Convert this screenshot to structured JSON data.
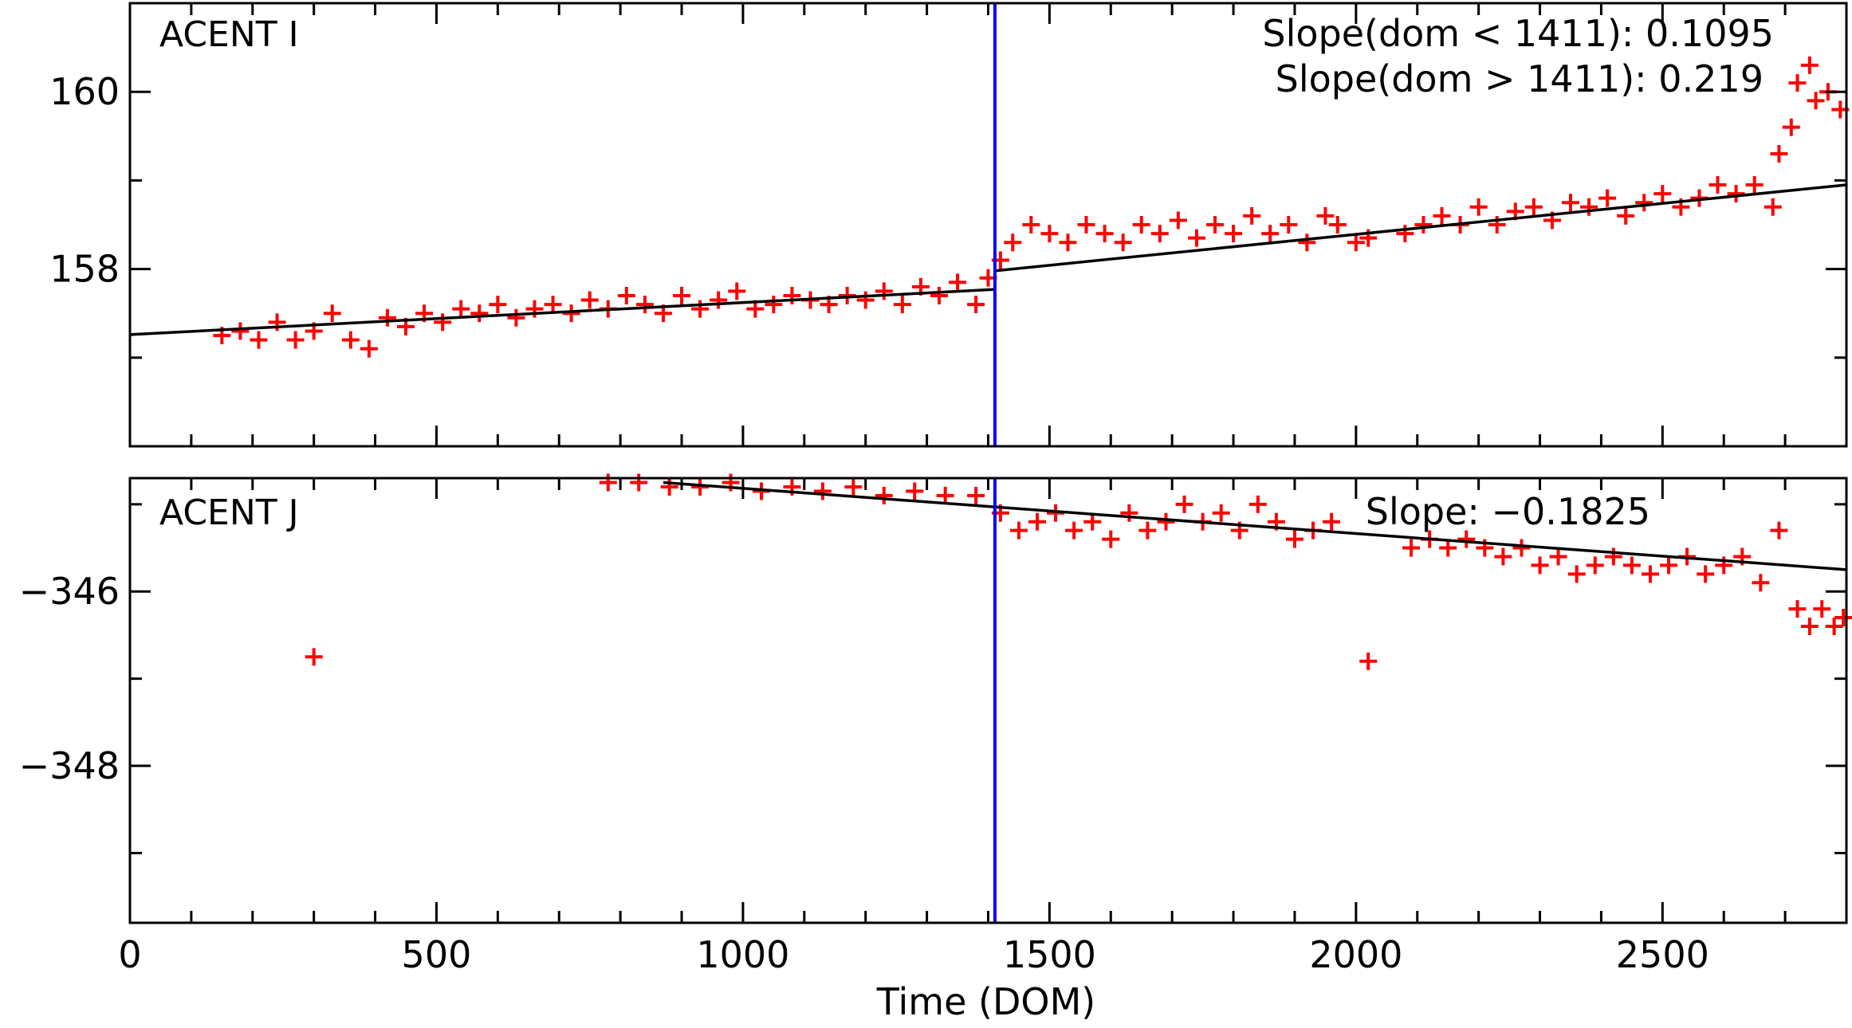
{
  "chart_data": [
    {
      "type": "scatter",
      "panel_label": "ACENT I",
      "xlim": [
        0,
        2800
      ],
      "ylim": [
        156.0,
        161.0
      ],
      "yticks": [
        158,
        160
      ],
      "ytick_labels": [
        "158",
        "160"
      ],
      "annotations": [
        "Slope(dom < 1411): 0.1095",
        "Slope(dom > 1411): 0.219"
      ],
      "breakpoint_dom": 1411,
      "fit_lines": [
        {
          "x": [
            0,
            1411
          ],
          "y": [
            157.26,
            157.77
          ]
        },
        {
          "x": [
            1411,
            2800
          ],
          "y": [
            157.98,
            158.95
          ]
        }
      ],
      "points": [
        [
          150,
          157.25
        ],
        [
          180,
          157.3
        ],
        [
          210,
          157.2
        ],
        [
          240,
          157.4
        ],
        [
          270,
          157.2
        ],
        [
          300,
          157.3
        ],
        [
          330,
          157.5
        ],
        [
          360,
          157.2
        ],
        [
          390,
          157.1
        ],
        [
          420,
          157.45
        ],
        [
          450,
          157.35
        ],
        [
          480,
          157.5
        ],
        [
          510,
          157.4
        ],
        [
          540,
          157.55
        ],
        [
          570,
          157.5
        ],
        [
          600,
          157.6
        ],
        [
          630,
          157.45
        ],
        [
          660,
          157.55
        ],
        [
          690,
          157.6
        ],
        [
          720,
          157.5
        ],
        [
          750,
          157.65
        ],
        [
          780,
          157.55
        ],
        [
          810,
          157.7
        ],
        [
          840,
          157.6
        ],
        [
          870,
          157.5
        ],
        [
          900,
          157.7
        ],
        [
          930,
          157.55
        ],
        [
          960,
          157.65
        ],
        [
          990,
          157.75
        ],
        [
          1020,
          157.55
        ],
        [
          1050,
          157.6
        ],
        [
          1080,
          157.7
        ],
        [
          1110,
          157.65
        ],
        [
          1140,
          157.6
        ],
        [
          1170,
          157.7
        ],
        [
          1200,
          157.65
        ],
        [
          1230,
          157.75
        ],
        [
          1260,
          157.6
        ],
        [
          1290,
          157.8
        ],
        [
          1320,
          157.7
        ],
        [
          1350,
          157.85
        ],
        [
          1380,
          157.6
        ],
        [
          1400,
          157.9
        ],
        [
          1420,
          158.1
        ],
        [
          1440,
          158.3
        ],
        [
          1470,
          158.5
        ],
        [
          1500,
          158.4
        ],
        [
          1530,
          158.3
        ],
        [
          1560,
          158.5
        ],
        [
          1590,
          158.4
        ],
        [
          1620,
          158.3
        ],
        [
          1650,
          158.5
        ],
        [
          1680,
          158.4
        ],
        [
          1710,
          158.55
        ],
        [
          1740,
          158.35
        ],
        [
          1770,
          158.5
        ],
        [
          1800,
          158.4
        ],
        [
          1830,
          158.6
        ],
        [
          1860,
          158.4
        ],
        [
          1890,
          158.5
        ],
        [
          1920,
          158.3
        ],
        [
          1950,
          158.6
        ],
        [
          1970,
          158.5
        ],
        [
          2000,
          158.3
        ],
        [
          2020,
          158.35
        ],
        [
          2080,
          158.4
        ],
        [
          2110,
          158.5
        ],
        [
          2140,
          158.6
        ],
        [
          2170,
          158.5
        ],
        [
          2200,
          158.7
        ],
        [
          2230,
          158.5
        ],
        [
          2260,
          158.65
        ],
        [
          2290,
          158.7
        ],
        [
          2320,
          158.55
        ],
        [
          2350,
          158.75
        ],
        [
          2380,
          158.7
        ],
        [
          2410,
          158.8
        ],
        [
          2440,
          158.6
        ],
        [
          2470,
          158.75
        ],
        [
          2500,
          158.85
        ],
        [
          2530,
          158.7
        ],
        [
          2560,
          158.8
        ],
        [
          2590,
          158.95
        ],
        [
          2620,
          158.85
        ],
        [
          2650,
          158.95
        ],
        [
          2680,
          158.7
        ],
        [
          2690,
          159.3
        ],
        [
          2710,
          159.6
        ],
        [
          2720,
          160.1
        ],
        [
          2740,
          160.3
        ],
        [
          2750,
          159.9
        ],
        [
          2770,
          160.0
        ],
        [
          2790,
          159.8
        ]
      ]
    },
    {
      "type": "scatter",
      "panel_label": "ACENT J",
      "xlim": [
        0,
        2800
      ],
      "ylim": [
        -349.8,
        -344.7
      ],
      "yticks": [
        -346,
        -348
      ],
      "ytick_labels": [
        "−346",
        "−348"
      ],
      "xticks": [
        0,
        500,
        1000,
        1500,
        2000,
        2500
      ],
      "xtick_labels": [
        "0",
        "500",
        "1000",
        "1500",
        "2000",
        "2500"
      ],
      "xlabel": "Time (DOM)",
      "annotations": [
        "Slope: −0.1825"
      ],
      "breakpoint_dom": 1411,
      "fit_lines": [
        {
          "x": [
            870,
            2800
          ],
          "y": [
            -344.75,
            -345.75
          ]
        }
      ],
      "points": [
        [
          300,
          -346.75
        ],
        [
          780,
          -344.75
        ],
        [
          830,
          -344.75
        ],
        [
          880,
          -344.8
        ],
        [
          930,
          -344.8
        ],
        [
          980,
          -344.75
        ],
        [
          1030,
          -344.85
        ],
        [
          1080,
          -344.8
        ],
        [
          1130,
          -344.85
        ],
        [
          1180,
          -344.8
        ],
        [
          1230,
          -344.9
        ],
        [
          1280,
          -344.85
        ],
        [
          1330,
          -344.9
        ],
        [
          1380,
          -344.9
        ],
        [
          1420,
          -345.1
        ],
        [
          1450,
          -345.3
        ],
        [
          1480,
          -345.2
        ],
        [
          1510,
          -345.1
        ],
        [
          1540,
          -345.3
        ],
        [
          1570,
          -345.2
        ],
        [
          1600,
          -345.4
        ],
        [
          1630,
          -345.1
        ],
        [
          1660,
          -345.3
        ],
        [
          1690,
          -345.2
        ],
        [
          1720,
          -345.0
        ],
        [
          1750,
          -345.2
        ],
        [
          1780,
          -345.1
        ],
        [
          1810,
          -345.3
        ],
        [
          1840,
          -345.0
        ],
        [
          1870,
          -345.2
        ],
        [
          1900,
          -345.4
        ],
        [
          1930,
          -345.3
        ],
        [
          1960,
          -345.2
        ],
        [
          2020,
          -346.8
        ],
        [
          2090,
          -345.5
        ],
        [
          2120,
          -345.4
        ],
        [
          2150,
          -345.5
        ],
        [
          2180,
          -345.4
        ],
        [
          2210,
          -345.5
        ],
        [
          2240,
          -345.6
        ],
        [
          2270,
          -345.5
        ],
        [
          2300,
          -345.7
        ],
        [
          2330,
          -345.6
        ],
        [
          2360,
          -345.8
        ],
        [
          2390,
          -345.7
        ],
        [
          2420,
          -345.6
        ],
        [
          2450,
          -345.7
        ],
        [
          2480,
          -345.8
        ],
        [
          2510,
          -345.7
        ],
        [
          2540,
          -345.6
        ],
        [
          2570,
          -345.8
        ],
        [
          2600,
          -345.7
        ],
        [
          2630,
          -345.6
        ],
        [
          2660,
          -345.9
        ],
        [
          2690,
          -345.3
        ],
        [
          2720,
          -346.2
        ],
        [
          2740,
          -346.4
        ],
        [
          2760,
          -346.2
        ],
        [
          2780,
          -346.4
        ],
        [
          2795,
          -346.3
        ]
      ]
    }
  ]
}
